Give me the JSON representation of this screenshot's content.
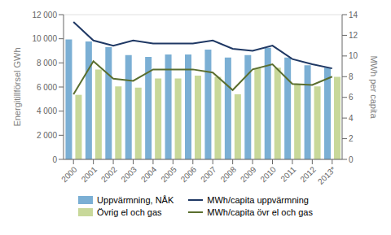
{
  "chart_data": {
    "type": "bar",
    "categories": [
      "2000",
      "2001",
      "2002",
      "2003",
      "2004",
      "2005",
      "2006",
      "2007",
      "2008",
      "2009",
      "2010",
      "2011",
      "2012",
      "2013*"
    ],
    "series": [
      {
        "name": "Uppvärmning, NÅK",
        "color": "#7bafd4",
        "values": [
          9950,
          9780,
          9300,
          8650,
          8500,
          8700,
          8700,
          9100,
          8450,
          8650,
          9250,
          8450,
          7800,
          7600
        ]
      },
      {
        "name": "Övrig el och gas",
        "color": "#c8d89a",
        "values": [
          5350,
          7450,
          6050,
          5950,
          6700,
          6700,
          6950,
          6850,
          5400,
          7550,
          7600,
          6250,
          6050,
          6850
        ]
      },
      {
        "name": "MWh/capita uppvärmning",
        "color": "#1f3864",
        "type": "line",
        "axis": "y2",
        "values": [
          13.3,
          11.5,
          11.0,
          11.5,
          11.2,
          11.2,
          11.2,
          11.5,
          10.7,
          10.5,
          11.0,
          9.7,
          9.2,
          8.8
        ]
      },
      {
        "name": "MWh/capita övr el och gas",
        "color": "#5a6e2e",
        "type": "line",
        "axis": "y2",
        "values": [
          6.3,
          9.5,
          7.8,
          7.6,
          8.7,
          8.7,
          8.7,
          8.4,
          6.7,
          8.7,
          9.2,
          7.3,
          7.2,
          8.0
        ]
      }
    ],
    "ylabel": "Energitillförsel GWh",
    "y2label": "MWh per capita",
    "ylim": [
      0,
      12000
    ],
    "yticks": [
      0,
      {
        "value": 2000,
        "label": "2 000"
      },
      {
        "value": 4000,
        "label": "4 000"
      },
      {
        "value": 6000,
        "label": "6 000"
      },
      {
        "value": 8000,
        "label": "8 000"
      },
      {
        "value": 10000,
        "label": "10 000"
      },
      {
        "value": 12000,
        "label": "12 000"
      }
    ],
    "y2lim": [
      0,
      14
    ],
    "y2ticks": [
      0,
      2,
      4,
      6,
      8,
      10,
      12,
      14
    ],
    "grid": true,
    "legend": "bottom"
  }
}
